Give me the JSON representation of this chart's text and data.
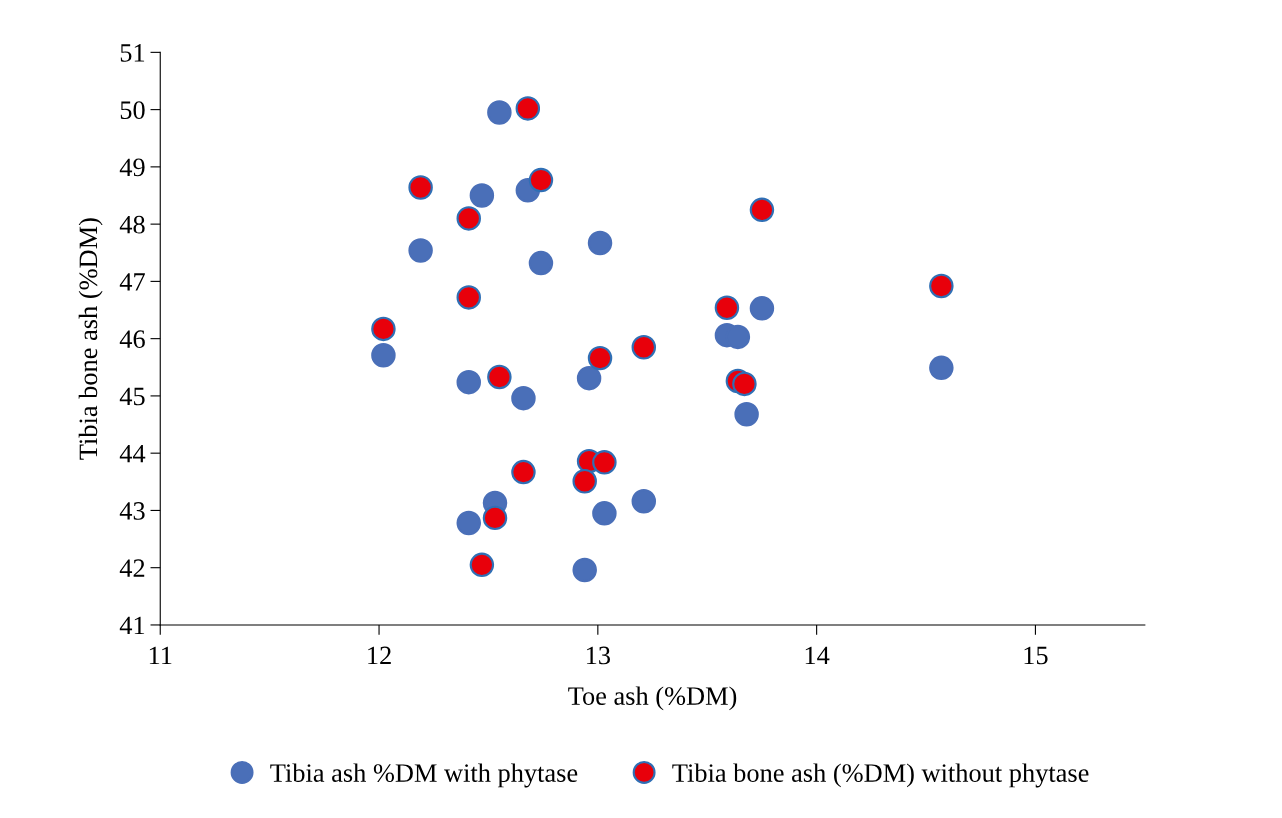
{
  "chart_data": {
    "type": "scatter",
    "xlabel": "Toe ash (%DM)",
    "ylabel": "Tibia bone ash (%DM)",
    "xlim": [
      11,
      15.5
    ],
    "xticks": [
      11,
      12,
      13,
      14,
      15
    ],
    "ylim": [
      41,
      51
    ],
    "yticks": [
      41,
      42,
      43,
      44,
      45,
      46,
      47,
      48,
      49,
      50,
      51
    ],
    "grid": false,
    "legend": "bottom",
    "marker": "circle",
    "series": [
      {
        "name": "Tibia ash %DM with phytase",
        "color": "#4a6fb8",
        "x": [
          12.55,
          12.47,
          12.68,
          12.19,
          13.01,
          12.74,
          12.02,
          12.41,
          12.66,
          12.96,
          13.59,
          13.64,
          13.75,
          13.68,
          14.57,
          12.53,
          12.41,
          13.03,
          13.21,
          12.94
        ],
        "values": [
          49.95,
          48.5,
          48.59,
          47.54,
          47.67,
          47.32,
          45.71,
          45.24,
          44.96,
          45.31,
          46.06,
          46.03,
          46.53,
          44.68,
          45.49,
          43.13,
          42.78,
          42.95,
          43.16,
          41.96
        ]
      },
      {
        "name": "Tibia bone ash (%DM) without phytase",
        "color": "#e8000b",
        "x": [
          12.68,
          12.19,
          12.74,
          12.41,
          13.75,
          12.41,
          12.02,
          13.01,
          13.21,
          12.55,
          13.59,
          13.64,
          13.67,
          14.57,
          12.66,
          12.96,
          13.03,
          12.94,
          12.53,
          12.47
        ],
        "values": [
          50.02,
          48.64,
          48.77,
          48.1,
          48.25,
          46.72,
          46.17,
          45.66,
          45.85,
          45.33,
          46.54,
          45.26,
          45.21,
          46.92,
          43.67,
          43.86,
          43.84,
          43.51,
          42.87,
          42.05
        ]
      }
    ]
  }
}
